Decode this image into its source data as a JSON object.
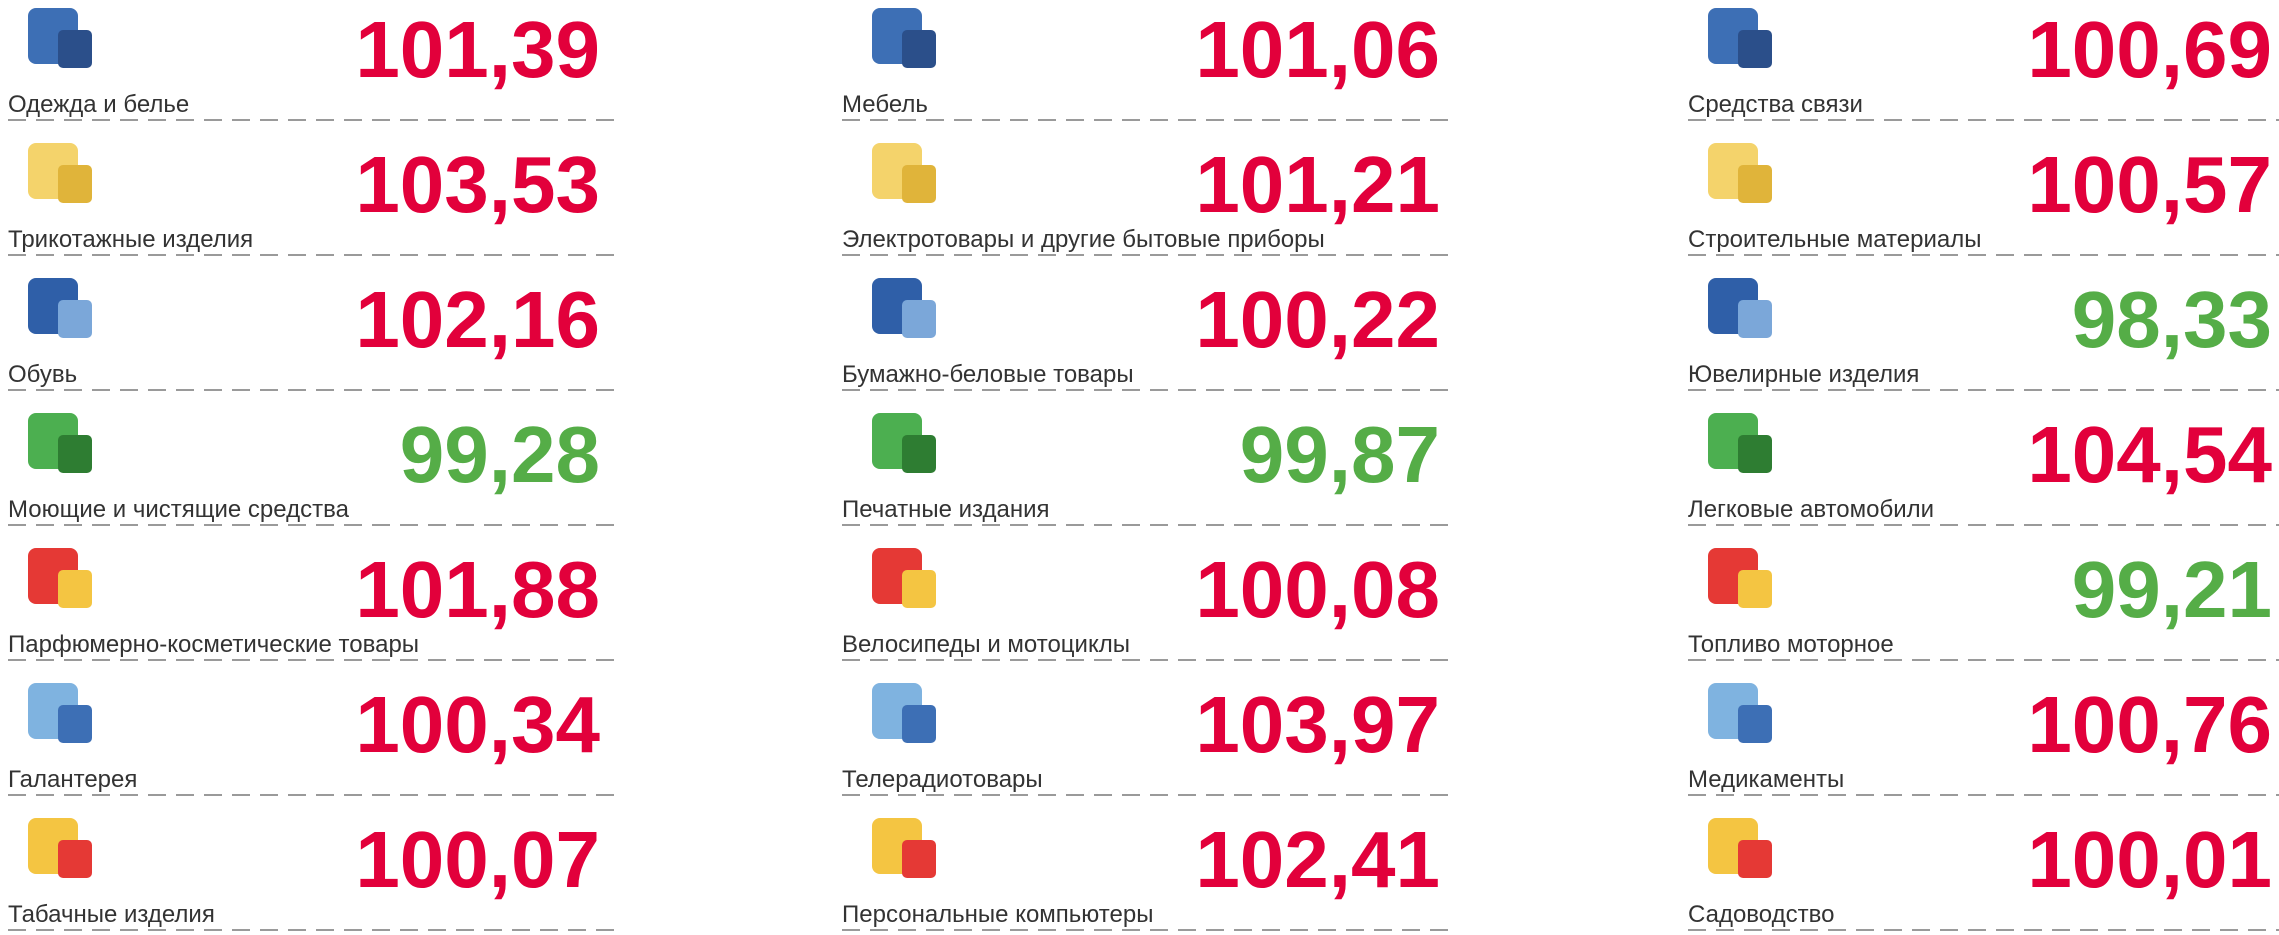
{
  "columns": [
    {
      "items": [
        {
          "label": "Одежда и белье",
          "value": "101,39",
          "color": "#e2003b"
        },
        {
          "label": "Трикотажные изделия",
          "value": "103,53",
          "color": "#e2003b"
        },
        {
          "label": "Обувь",
          "value": "102,16",
          "color": "#e2003b"
        },
        {
          "label": "Моющие и чистящие средства",
          "value": "99,28",
          "color": "#55ad47"
        },
        {
          "label": "Парфюмерно-косметические товары",
          "value": "101,88",
          "color": "#e2003b"
        },
        {
          "label": "Галантерея",
          "value": "100,34",
          "color": "#e2003b"
        },
        {
          "label": "Табачные изделия",
          "value": "100,07",
          "color": "#e2003b"
        }
      ]
    },
    {
      "items": [
        {
          "label": "Мебель",
          "value": "101,06",
          "color": "#e2003b"
        },
        {
          "label": "Электротовары и другие бытовые приборы",
          "value": "101,21",
          "color": "#e2003b"
        },
        {
          "label": "Бумажно-беловые товары",
          "value": "100,22",
          "color": "#e2003b"
        },
        {
          "label": "Печатные издания",
          "value": "99,87",
          "color": "#55ad47"
        },
        {
          "label": "Велосипеды и мотоциклы",
          "value": "100,08",
          "color": "#e2003b"
        },
        {
          "label": "Телерадиотовары",
          "value": "103,97",
          "color": "#e2003b"
        },
        {
          "label": "Персональные компьютеры",
          "value": "102,41",
          "color": "#e2003b"
        }
      ]
    },
    {
      "items": [
        {
          "label": "Средства связи",
          "value": "100,69",
          "color": "#e2003b"
        },
        {
          "label": "Строительные материалы",
          "value": "100,57",
          "color": "#e2003b"
        },
        {
          "label": "Ювелирные изделия",
          "value": "98,33",
          "color": "#55ad47"
        },
        {
          "label": "Легковые автомобили",
          "value": "104,54",
          "color": "#e2003b"
        },
        {
          "label": "Топливо моторное",
          "value": "99,21",
          "color": "#55ad47"
        },
        {
          "label": "Медикаменты",
          "value": "100,76",
          "color": "#e2003b"
        },
        {
          "label": "Садоводство",
          "value": "100,01",
          "color": "#e2003b"
        }
      ]
    }
  ]
}
